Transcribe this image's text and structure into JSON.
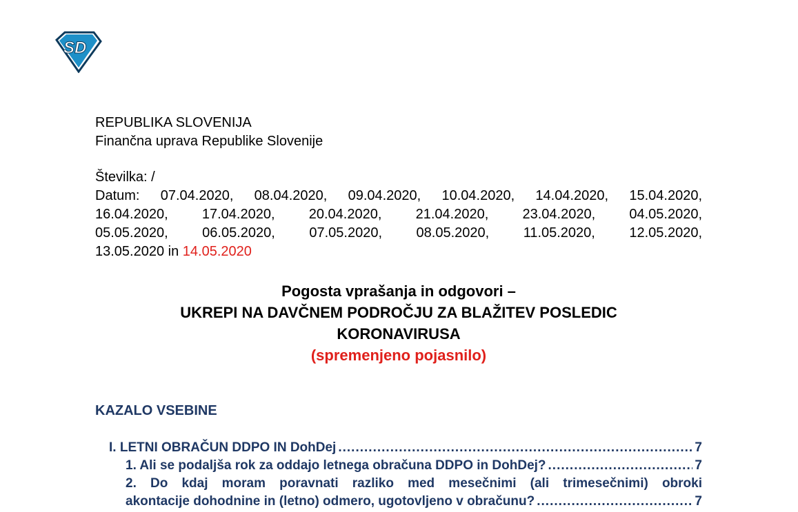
{
  "header": {
    "line1": "REPUBLIKA SLOVENIJA",
    "line2": "Finančna uprava Republike Slovenije",
    "number": "Številka: /",
    "dates": [
      "Datum:",
      "07.04.2020,",
      "08.04.2020,",
      "09.04.2020,",
      "10.04.2020,",
      "14.04.2020,",
      "15.04.2020,",
      "16.04.2020,",
      "17.04.2020,",
      "20.04.2020,",
      "21.04.2020,",
      "23.04.2020,",
      "04.05.2020,",
      "05.05.2020,",
      "06.05.2020,",
      "07.05.2020,",
      "08.05.2020,",
      "11.05.2020,",
      "12.05.2020,"
    ],
    "last_line": "13.05.2020 in",
    "last_date": "14.05.2020"
  },
  "title": {
    "line1": "Pogosta vprašanja in odgovori –",
    "line2": "UKREPI NA DAVČNEM PODROČJU ZA BLAŽITEV POSLEDIC",
    "line3": "KORONAVIRUSA",
    "subtitle": "(spremenjeno pojasnilo)"
  },
  "toc": {
    "heading": "KAZALO VSEBINE",
    "items": [
      {
        "label": "I. LETNI OBRAČUN DDPO IN DohDej",
        "page": "7"
      },
      {
        "label": "1. Ali se podaljša rok za oddajo letnega obračuna DDPO in DohDej?",
        "page": "7"
      },
      {
        "label_a": "2. Do kdaj moram poravnati razliko med mesečnimi (ali trimesečnimi) obroki",
        "label": "akontacije dohodnine in (letno) odmero, ugotovljeno v obračunu?",
        "page": "7"
      }
    ]
  },
  "colors": {
    "accent_red": "#e0201b",
    "toc_blue": "#1f3864",
    "logo_blue": "#1e90c8"
  }
}
